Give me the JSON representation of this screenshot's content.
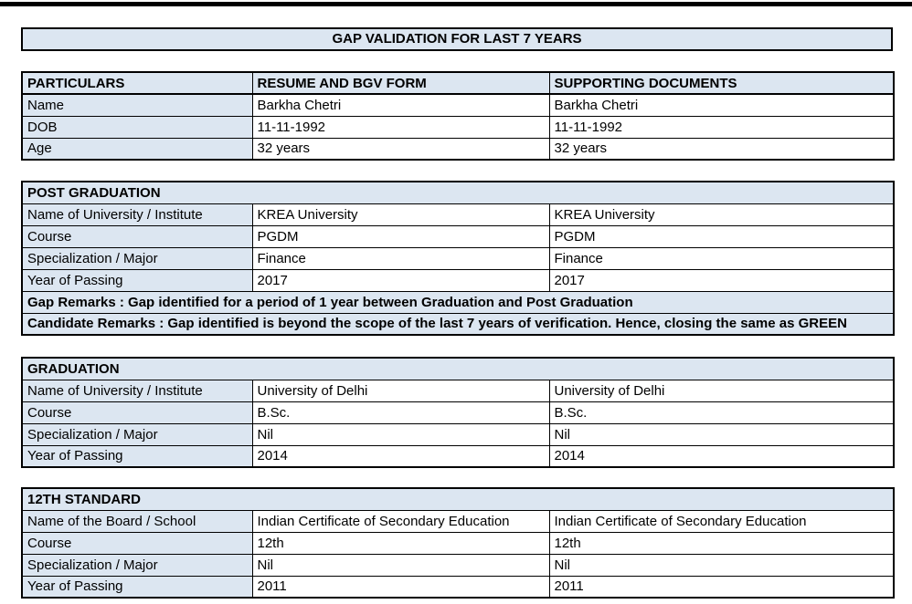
{
  "title_bar": {
    "label": "GAP VALIDATION FOR LAST 7 YEARS"
  },
  "colors": {
    "cell_fill": "#dce6f1",
    "border": "#000000",
    "text": "#000000",
    "page_background": "#ffffff",
    "top_rule": "#000000"
  },
  "info_table": {
    "headers": [
      "PARTICULARS",
      "RESUME AND BGV FORM",
      "SUPPORTING DOCUMENTS"
    ],
    "rows": [
      [
        "Name",
        "Barkha Chetri",
        "Barkha Chetri"
      ],
      [
        "DOB",
        "11-11-1992",
        "11-11-1992"
      ],
      [
        "Age",
        "32 years",
        "32 years"
      ]
    ]
  },
  "sections": [
    {
      "title": "POST GRADUATION",
      "rows": [
        [
          "Name of University / Institute",
          "KREA University",
          "KREA University"
        ],
        [
          "Course",
          "PGDM",
          "PGDM"
        ],
        [
          "Specialization / Major",
          "Finance",
          "Finance"
        ],
        [
          "Year of Passing",
          "2017",
          "2017"
        ]
      ],
      "remarks": [
        "Gap Remarks : Gap identified for a period of 1 year between Graduation and Post Graduation",
        "Candidate Remarks : Gap identified is beyond the scope of the last 7 years of verification. Hence, closing the same as GREEN"
      ]
    },
    {
      "title": "GRADUATION",
      "rows": [
        [
          "Name of University / Institute",
          "University of Delhi",
          "University of Delhi"
        ],
        [
          "Course",
          "B.Sc.",
          "B.Sc."
        ],
        [
          "Specialization / Major",
          "Nil",
          "Nil"
        ],
        [
          "Year of Passing",
          "2014",
          "2014"
        ]
      ],
      "remarks": []
    },
    {
      "title": "12TH STANDARD",
      "rows": [
        [
          "Name of the Board / School",
          "Indian Certificate of Secondary Education",
          "Indian Certificate of Secondary Education"
        ],
        [
          "Course",
          "12th",
          "12th"
        ],
        [
          "Specialization / Major",
          "Nil",
          "Nil"
        ],
        [
          "Year of Passing",
          "2011",
          "2011"
        ]
      ],
      "remarks": []
    }
  ]
}
